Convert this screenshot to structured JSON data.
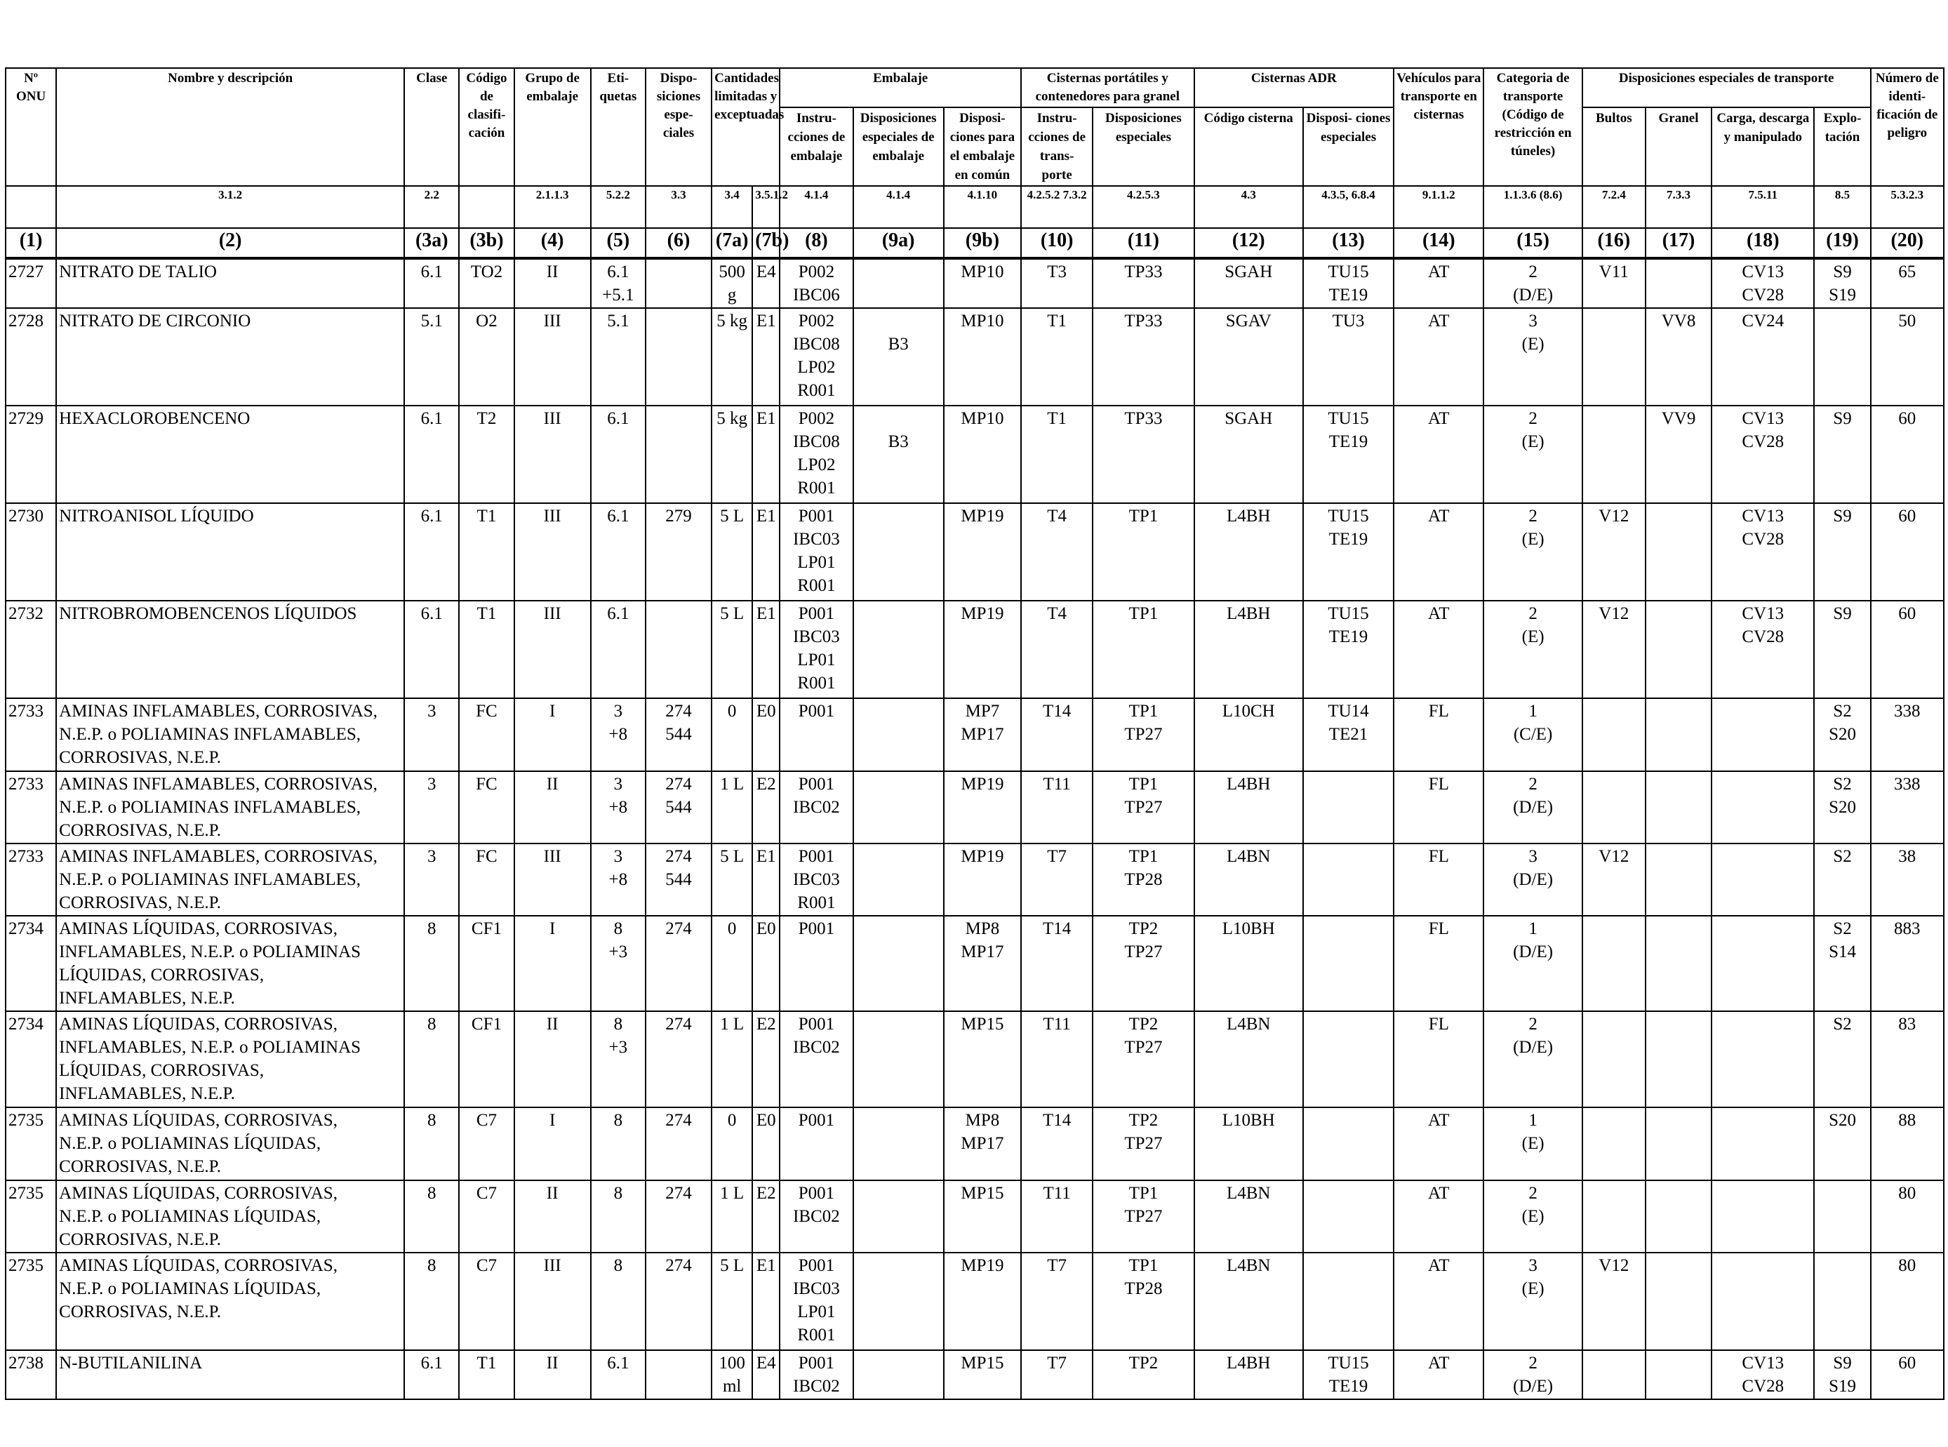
{
  "header": {
    "un_no": "Nº ONU",
    "name": "Nombre y descripción",
    "clase": "Clase",
    "codigo": "Código de clasifi- cación",
    "grupo": "Grupo de embalaje",
    "etiquetas": "Eti- quetas",
    "disposiciones": "Dispo- siciones espe- ciales",
    "cantidades": "Cantidades limitadas y exceptuadas",
    "embalaje": "Embalaje",
    "cisternas_port": "Cisternas portátiles y contenedores para granel",
    "cisternas_adr": "Cisternas ADR",
    "vehiculos": "Vehículos para transporte en cisternas",
    "categoria": "Categoria de transporte (Código de restricción en túneles)",
    "disp_transporte": "Disposiciones especiales de transporte",
    "numero": "Número de identi- ficación de peligro",
    "sub_instrucciones": "Instru- cciones de embalaje",
    "sub_disp_embalaje": "Disposiciones especiales de embalaje",
    "sub_disp_comun": "Disposi- ciones para el embalaje en común",
    "sub_instr_transporte": "Instru- cciones de trans- porte",
    "sub_disp_especiales": "Disposiciones especiales",
    "sub_codigo_cisterna": "Código cisterna",
    "sub_disp_cisterna": "Disposi- ciones especiales",
    "sub_bultos": "Bultos",
    "sub_granel": "Granel",
    "sub_carga": "Carga, descarga y manipulado",
    "sub_explotacion": "Explo- tación"
  },
  "refs": [
    "",
    "3.1.2",
    "2.2",
    "",
    "2.1.1.3",
    "5.2.2",
    "3.3",
    "3.4",
    "3.5.1.2",
    "4.1.4",
    "4.1.4",
    "4.1.10",
    "4.2.5.2 7.3.2",
    "4.2.5.3",
    "4.3",
    "4.3.5, 6.8.4",
    "9.1.1.2",
    "1.1.3.6 (8.6)",
    "7.2.4",
    "7.3.3",
    "7.5.11",
    "8.5",
    "5.3.2.3"
  ],
  "column_numbers": [
    "(1)",
    "(2)",
    "(3a)",
    "(3b)",
    "(4)",
    "(5)",
    "(6)",
    "(7a)",
    "(7b)",
    "(8)",
    "(9a)",
    "(9b)",
    "(10)",
    "(11)",
    "(12)",
    "(13)",
    "(14)",
    "(15)",
    "(16)",
    "(17)",
    "(18)",
    "(19)",
    "(20)"
  ],
  "rows": [
    {
      "h": 70,
      "c": [
        "2727",
        "NITRATO DE TALIO",
        "6.1",
        "TO2",
        "II",
        "6.1\n+5.1",
        "",
        "500\ng",
        "E4",
        "P002\nIBC06",
        "",
        "MP10",
        "T3",
        "TP33",
        "SGAH",
        "TU15\nTE19",
        "AT",
        "2\n(D/E)",
        "V11",
        "",
        "CV13\nCV28",
        "S9\nS19",
        "65"
      ]
    },
    {
      "h": 139,
      "c": [
        "2728",
        "NITRATO DE CIRCONIO",
        "5.1",
        "O2",
        "III",
        "5.1",
        "",
        "5 kg",
        "E1",
        "P002\nIBC08\nLP02\nR001",
        "\nB3",
        "MP10",
        "T1",
        "TP33",
        "SGAV",
        "TU3",
        "AT",
        "3\n(E)",
        "",
        "VV8",
        "CV24",
        "",
        "50"
      ]
    },
    {
      "h": 139,
      "c": [
        "2729",
        "HEXACLOROBENCENO",
        "6.1",
        "T2",
        "III",
        "6.1",
        "",
        "5 kg",
        "E1",
        "P002\nIBC08\nLP02\nR001",
        "\nB3",
        "MP10",
        "T1",
        "TP33",
        "SGAH",
        "TU15\nTE19",
        "AT",
        "2\n(E)",
        "",
        "VV9",
        "CV13\nCV28",
        "S9",
        "60"
      ]
    },
    {
      "h": 139,
      "c": [
        "2730",
        "NITROANISOL LÍQUIDO",
        "6.1",
        "T1",
        "III",
        "6.1",
        "279",
        "5 L",
        "E1",
        "P001\nIBC03\nLP01\nR001",
        "",
        "MP19",
        "T4",
        "TP1",
        "L4BH",
        "TU15\nTE19",
        "AT",
        "2\n(E)",
        "V12",
        "",
        "CV13\nCV28",
        "S9",
        "60"
      ]
    },
    {
      "h": 139,
      "c": [
        "2732",
        "NITROBROMOBENCENOS LÍQUIDOS",
        "6.1",
        "T1",
        "III",
        "6.1",
        "",
        "5 L",
        "E1",
        "P001\nIBC03\nLP01\nR001",
        "",
        "MP19",
        "T4",
        "TP1",
        "L4BH",
        "TU15\nTE19",
        "AT",
        "2\n(E)",
        "V12",
        "",
        "CV13\nCV28",
        "S9",
        "60"
      ]
    },
    {
      "h": 104,
      "c": [
        "2733",
        "AMINAS INFLAMABLES, CORROSIVAS,\nN.E.P. o POLIAMINAS INFLAMABLES,\nCORROSIVAS, N.E.P.",
        "3",
        "FC",
        "I",
        "3\n+8",
        "274\n544",
        "0",
        "E0",
        "P001",
        "",
        "MP7\nMP17",
        "T14",
        "TP1\nTP27",
        "L10CH",
        "TU14\nTE21",
        "FL",
        "1\n(C/E)",
        "",
        "",
        "",
        "S2\nS20",
        "338"
      ]
    },
    {
      "h": 102,
      "c": [
        "2733",
        "AMINAS INFLAMABLES, CORROSIVAS,\nN.E.P. o POLIAMINAS INFLAMABLES,\nCORROSIVAS, N.E.P.",
        "3",
        "FC",
        "II",
        "3\n+8",
        "274\n544",
        "1 L",
        "E2",
        "P001\nIBC02",
        "",
        "MP19",
        "T11",
        "TP1\nTP27",
        "L4BH",
        "",
        "FL",
        "2\n(D/E)",
        "",
        "",
        "",
        "S2\nS20",
        "338"
      ]
    },
    {
      "h": 100,
      "c": [
        "2733",
        "AMINAS INFLAMABLES, CORROSIVAS,\nN.E.P. o POLIAMINAS INFLAMABLES,\nCORROSIVAS, N.E.P.",
        "3",
        "FC",
        "III",
        "3\n+8",
        "274\n544",
        "5 L",
        "E1",
        "P001\nIBC03\nR001",
        "",
        "MP19",
        "T7",
        "TP1\nTP28",
        "L4BN",
        "",
        "FL",
        "3\n(D/E)",
        "V12",
        "",
        "",
        "S2",
        "38"
      ]
    },
    {
      "h": 134,
      "c": [
        "2734",
        "AMINAS LÍQUIDAS, CORROSIVAS,\nINFLAMABLES, N.E.P. o POLIAMINAS\nLÍQUIDAS, CORROSIVAS,\nINFLAMABLES, N.E.P.",
        "8",
        "CF1",
        "I",
        "8\n+3",
        "274",
        "0",
        "E0",
        "P001",
        "",
        "MP8\nMP17",
        "T14",
        "TP2\nTP27",
        "L10BH",
        "",
        "FL",
        "1\n(D/E)",
        "",
        "",
        "",
        "S2\nS14",
        "883"
      ]
    },
    {
      "h": 137,
      "c": [
        "2734",
        "AMINAS LÍQUIDAS, CORROSIVAS,\nINFLAMABLES, N.E.P. o POLIAMINAS\nLÍQUIDAS, CORROSIVAS,\nINFLAMABLES, N.E.P.",
        "8",
        "CF1",
        "II",
        "8\n+3",
        "274",
        "1 L",
        "E2",
        "P001\nIBC02",
        "",
        "MP15",
        "T11",
        "TP2\nTP27",
        "L4BN",
        "",
        "FL",
        "2\n(D/E)",
        "",
        "",
        "",
        "S2",
        "83"
      ]
    },
    {
      "h": 104,
      "c": [
        "2735",
        "AMINAS LÍQUIDAS, CORROSIVAS,\nN.E.P. o POLIAMINAS LÍQUIDAS,\nCORROSIVAS, N.E.P.",
        "8",
        "C7",
        "I",
        "8",
        "274",
        "0",
        "E0",
        "P001",
        "",
        "MP8\nMP17",
        "T14",
        "TP2\nTP27",
        "L10BH",
        "",
        "AT",
        "1\n(E)",
        "",
        "",
        "",
        "S20",
        "88"
      ]
    },
    {
      "h": 102,
      "c": [
        "2735",
        "AMINAS LÍQUIDAS, CORROSIVAS,\nN.E.P. o POLIAMINAS LÍQUIDAS,\nCORROSIVAS, N.E.P.",
        "8",
        "C7",
        "II",
        "8",
        "274",
        "1 L",
        "E2",
        "P001\nIBC02",
        "",
        "MP15",
        "T11",
        "TP1\nTP27",
        "L4BN",
        "",
        "AT",
        "2\n(E)",
        "",
        "",
        "",
        "",
        "80"
      ]
    },
    {
      "h": 139,
      "c": [
        "2735",
        "AMINAS LÍQUIDAS, CORROSIVAS,\nN.E.P. o POLIAMINAS LÍQUIDAS,\nCORROSIVAS, N.E.P.",
        "8",
        "C7",
        "III",
        "8",
        "274",
        "5 L",
        "E1",
        "P001\nIBC03\nLP01\nR001",
        "",
        "MP19",
        "T7",
        "TP1\nTP28",
        "L4BN",
        "",
        "AT",
        "3\n(E)",
        "V12",
        "",
        "",
        "",
        "80"
      ]
    },
    {
      "h": 70,
      "c": [
        "2738",
        "N-BUTILANILINA",
        "6.1",
        "T1",
        "II",
        "6.1",
        "",
        "100\nml",
        "E4",
        "P001\nIBC02",
        "",
        "MP15",
        "T7",
        "TP2",
        "L4BH",
        "TU15\nTE19",
        "AT",
        "2\n(D/E)",
        "",
        "",
        "CV13\nCV28",
        "S9\nS19",
        "60"
      ]
    }
  ]
}
